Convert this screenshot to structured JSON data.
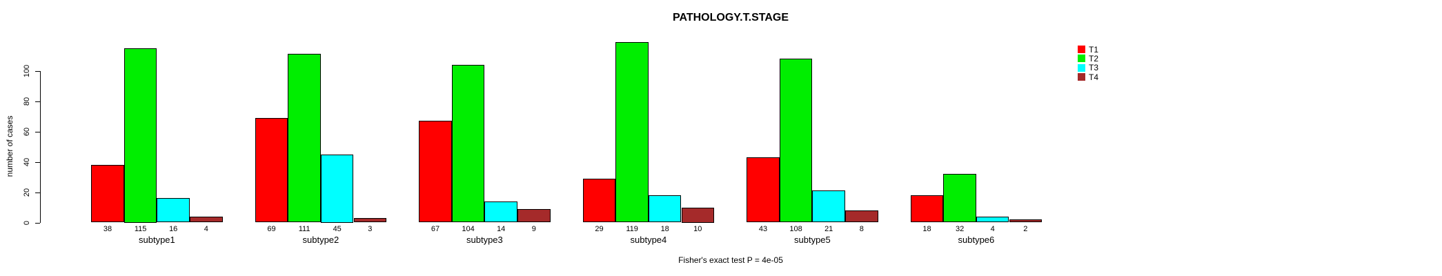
{
  "title": "PATHOLOGY.T.STAGE",
  "annotation": "Fisher's exact test P = 4e-05",
  "colors": {
    "background": "#ffffff",
    "axis": "#000000",
    "text": "#000000"
  },
  "chart_data": {
    "type": "bar",
    "title": "PATHOLOGY.T.STAGE",
    "xlabel": "",
    "ylabel": "number of cases",
    "categories": [
      "subtype1",
      "subtype2",
      "subtype3",
      "subtype4",
      "subtype5",
      "subtype6"
    ],
    "series": [
      {
        "name": "T1",
        "color": "#ff0000",
        "values": [
          38,
          69,
          67,
          29,
          43,
          18
        ]
      },
      {
        "name": "T2",
        "color": "#00ee00",
        "values": [
          115,
          111,
          104,
          119,
          108,
          32
        ]
      },
      {
        "name": "T3",
        "color": "#00ffff",
        "values": [
          16,
          45,
          14,
          18,
          21,
          4
        ]
      },
      {
        "name": "T4",
        "color": "#a52a2a",
        "values": [
          4,
          3,
          9,
          10,
          8,
          2
        ]
      }
    ],
    "value_labels_shown": true,
    "yticks": [
      0,
      20,
      40,
      60,
      80,
      100
    ],
    "ylim": [
      0,
      125
    ],
    "grid": false,
    "legend_position": "right-of-plot-top",
    "legend_labels": [
      "T1",
      "T2",
      "T3",
      "T4"
    ],
    "annotation": "Fisher's exact test P = 4e-05",
    "bar_border_color": "#000000"
  }
}
